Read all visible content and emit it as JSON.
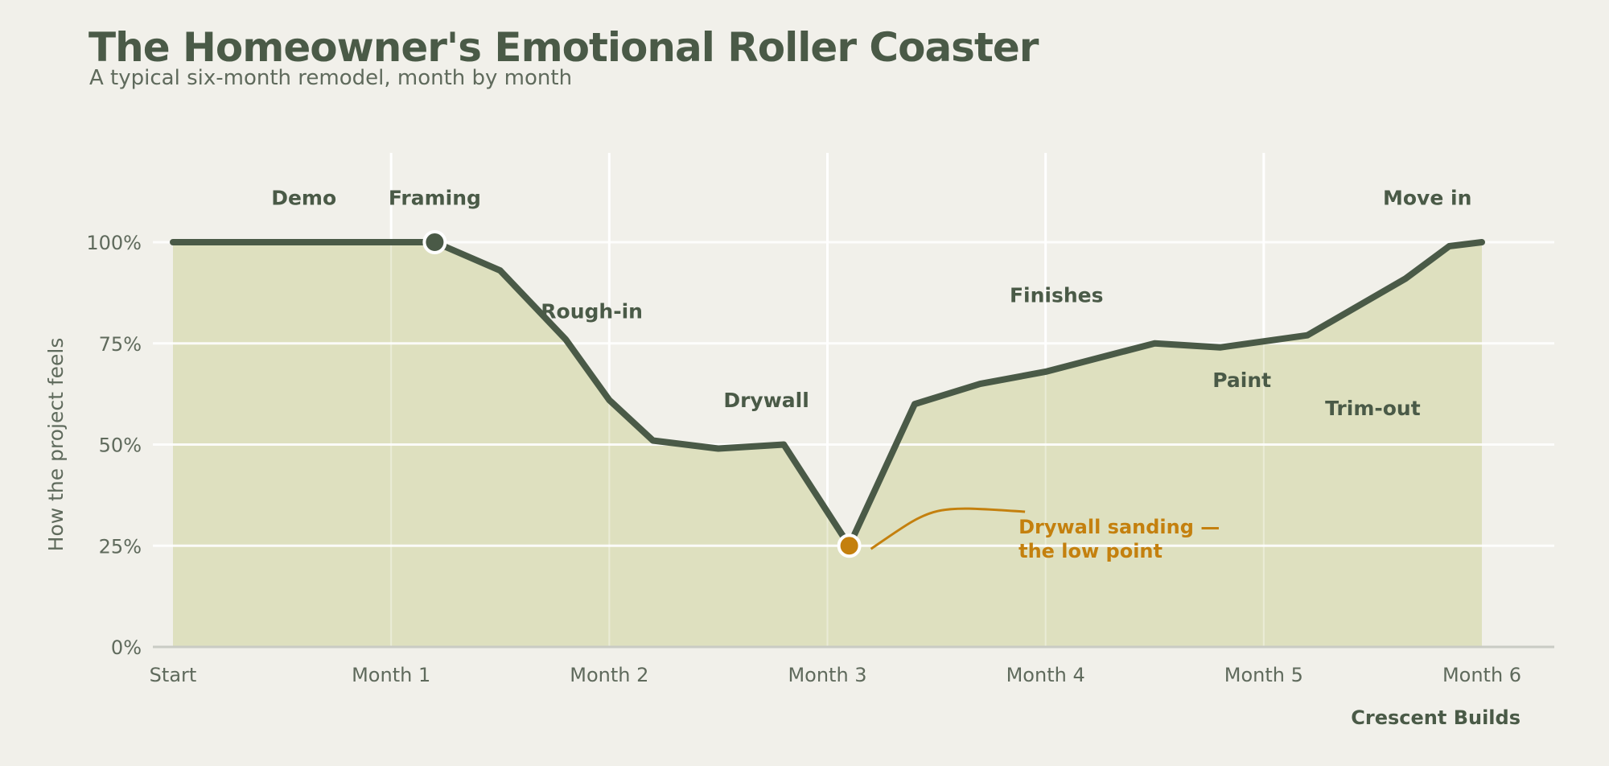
{
  "chart_data": {
    "type": "area",
    "title": "The Homeowner's Emotional Roller Coaster",
    "subtitle": "A typical six-month remodel, month by month",
    "ylabel": "How the project feels",
    "xlabel": "",
    "x_ticks": [
      "Start",
      "Month 1",
      "Month 2",
      "Month 3",
      "Month 4",
      "Month 5",
      "Month 6"
    ],
    "y_ticks": [
      "0%",
      "25%",
      "50%",
      "75%",
      "100%"
    ],
    "xlim": [
      0,
      6
    ],
    "ylim": [
      0,
      100
    ],
    "grid": true,
    "legend": "none",
    "series": [
      {
        "x": [
          0,
          1.2,
          1.5,
          1.8,
          2.0,
          2.2,
          2.5,
          2.8,
          3.1,
          3.4,
          3.7,
          4.0,
          4.5,
          4.8,
          5.2,
          5.65,
          5.85,
          6.0
        ],
        "values": [
          100,
          100,
          93,
          76,
          61,
          51,
          49,
          50,
          25,
          60,
          65,
          68,
          75,
          74,
          77,
          91,
          99,
          100
        ]
      }
    ],
    "phase_labels": [
      {
        "text": "Demo",
        "x": 0.6,
        "y": 111
      },
      {
        "text": "Framing",
        "x": 1.2,
        "y": 111
      },
      {
        "text": "Rough-in",
        "x": 1.92,
        "y": 83
      },
      {
        "text": "Drywall",
        "x": 2.72,
        "y": 61
      },
      {
        "text": "Finishes",
        "x": 4.05,
        "y": 87
      },
      {
        "text": "Paint",
        "x": 4.9,
        "y": 66
      },
      {
        "text": "Trim-out",
        "x": 5.5,
        "y": 59
      },
      {
        "text": "Move in",
        "x": 5.75,
        "y": 111
      }
    ],
    "highlight_points": [
      {
        "x": 1.2,
        "y": 100,
        "color": "#4a5a47"
      },
      {
        "x": 3.1,
        "y": 25,
        "color": "#c4800e"
      }
    ],
    "annotation": {
      "lines": [
        "Drywall sanding —",
        "the low point"
      ],
      "x": 3.95,
      "y": 33,
      "target_x": 3.1,
      "target_y": 25
    }
  },
  "credit": "Crescent Builds",
  "colors": {
    "background": "#f1f0ea",
    "line": "#4a5a47",
    "area": "#dcdebb",
    "accent": "#c4800e",
    "grid": "#ffffff",
    "text": "#5f6a5c"
  }
}
